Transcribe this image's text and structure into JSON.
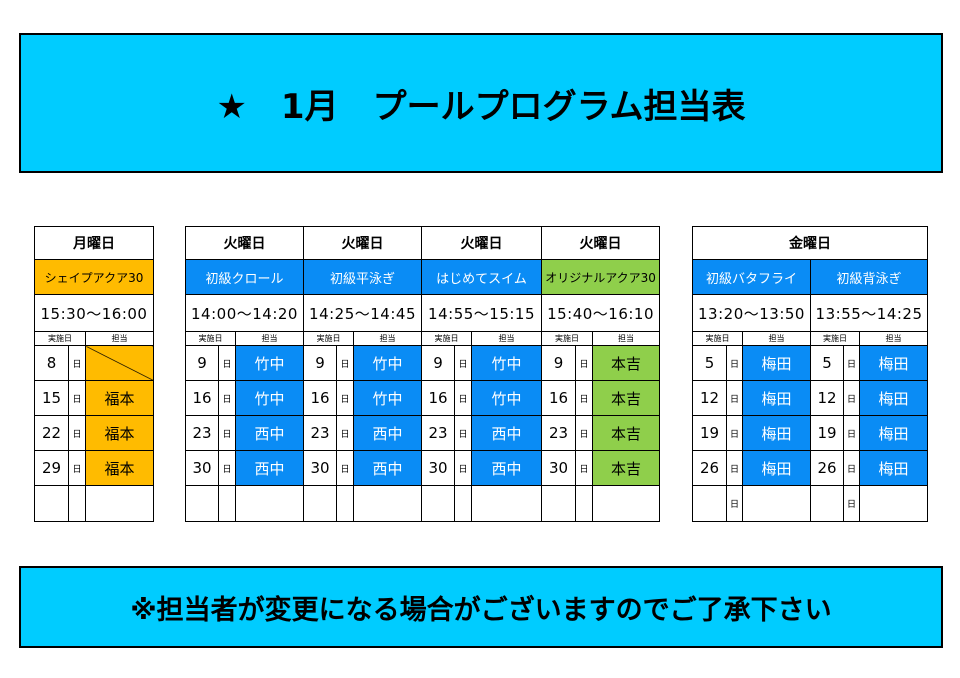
{
  "title": "★　1月　プールプログラム担当表",
  "footer": "※担当者が変更になる場合がございますのでご了承下さい",
  "colors": {
    "banner": "#00ccff",
    "blue": "#0a8cf5",
    "orange": "#ffbb00",
    "green": "#8fcf4b"
  },
  "labels": {
    "date": "実施日",
    "instructor": "担当",
    "unit": "日"
  },
  "monday": {
    "day": "月曜日",
    "program": "シェイプアクア30",
    "time": "15:30〜16:00",
    "rows": [
      {
        "date": "8",
        "inst": ""
      },
      {
        "date": "15",
        "inst": "福本"
      },
      {
        "date": "22",
        "inst": "福本"
      },
      {
        "date": "29",
        "inst": "福本"
      }
    ]
  },
  "tuesday": [
    {
      "day": "火曜日",
      "program": "初級クロール",
      "time": "14:00〜14:20",
      "rows": [
        {
          "date": "9",
          "inst": "竹中"
        },
        {
          "date": "16",
          "inst": "竹中"
        },
        {
          "date": "23",
          "inst": "西中"
        },
        {
          "date": "30",
          "inst": "西中"
        }
      ]
    },
    {
      "day": "火曜日",
      "program": "初級平泳ぎ",
      "time": "14:25〜14:45",
      "rows": [
        {
          "date": "9",
          "inst": "竹中"
        },
        {
          "date": "16",
          "inst": "竹中"
        },
        {
          "date": "23",
          "inst": "西中"
        },
        {
          "date": "30",
          "inst": "西中"
        }
      ]
    },
    {
      "day": "火曜日",
      "program": "はじめてスイム",
      "time": "14:55〜15:15",
      "rows": [
        {
          "date": "9",
          "inst": "竹中"
        },
        {
          "date": "16",
          "inst": "竹中"
        },
        {
          "date": "23",
          "inst": "西中"
        },
        {
          "date": "30",
          "inst": "西中"
        }
      ]
    },
    {
      "day": "火曜日",
      "program": "オリジナルアクア30",
      "time": "15:40〜16:10",
      "rows": [
        {
          "date": "9",
          "inst": "本吉"
        },
        {
          "date": "16",
          "inst": "本吉"
        },
        {
          "date": "23",
          "inst": "本吉"
        },
        {
          "date": "30",
          "inst": "本吉"
        }
      ]
    }
  ],
  "friday": {
    "day": "金曜日",
    "programs": [
      {
        "program": "初級バタフライ",
        "time": "13:20〜13:50",
        "rows": [
          {
            "date": "5",
            "inst": "梅田"
          },
          {
            "date": "12",
            "inst": "梅田"
          },
          {
            "date": "19",
            "inst": "梅田"
          },
          {
            "date": "26",
            "inst": "梅田"
          }
        ]
      },
      {
        "program": "初級背泳ぎ",
        "time": "13:55〜14:25",
        "rows": [
          {
            "date": "5",
            "inst": "梅田"
          },
          {
            "date": "12",
            "inst": "梅田"
          },
          {
            "date": "19",
            "inst": "梅田"
          },
          {
            "date": "26",
            "inst": "梅田"
          }
        ]
      }
    ]
  }
}
